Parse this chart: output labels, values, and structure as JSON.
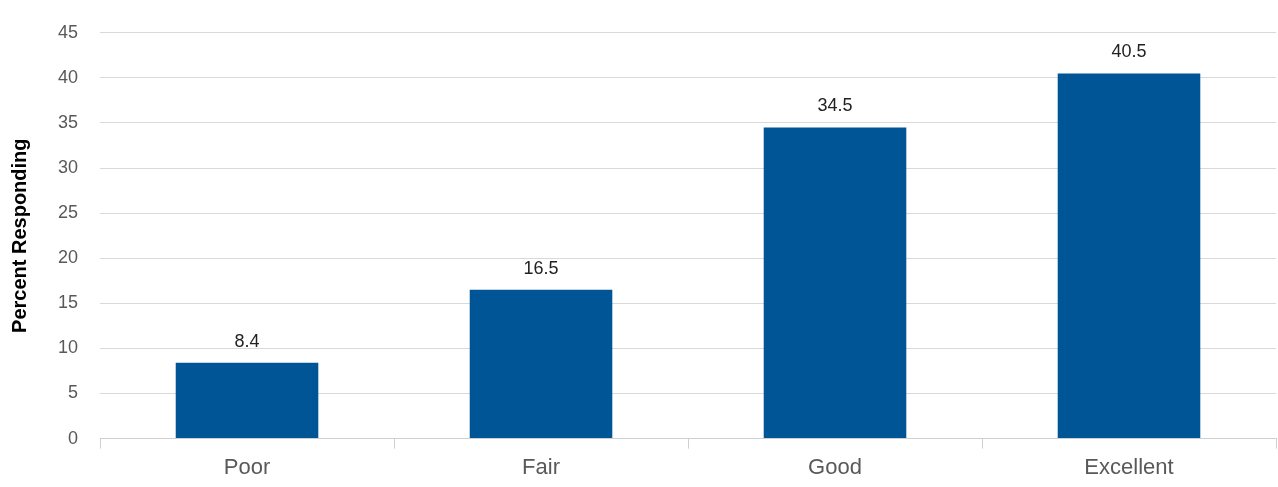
{
  "chart_data": {
    "type": "bar",
    "ylabel": "Percent Responding",
    "categories": [
      "Poor",
      "Fair",
      "Good",
      "Excellent"
    ],
    "values": [
      8.4,
      16.5,
      34.5,
      40.5
    ],
    "color": "#005596",
    "ylim": [
      0,
      45
    ],
    "yticks": [
      0,
      5,
      10,
      15,
      20,
      25,
      30,
      35,
      40,
      45
    ],
    "grid": "y",
    "data_labels": true
  }
}
